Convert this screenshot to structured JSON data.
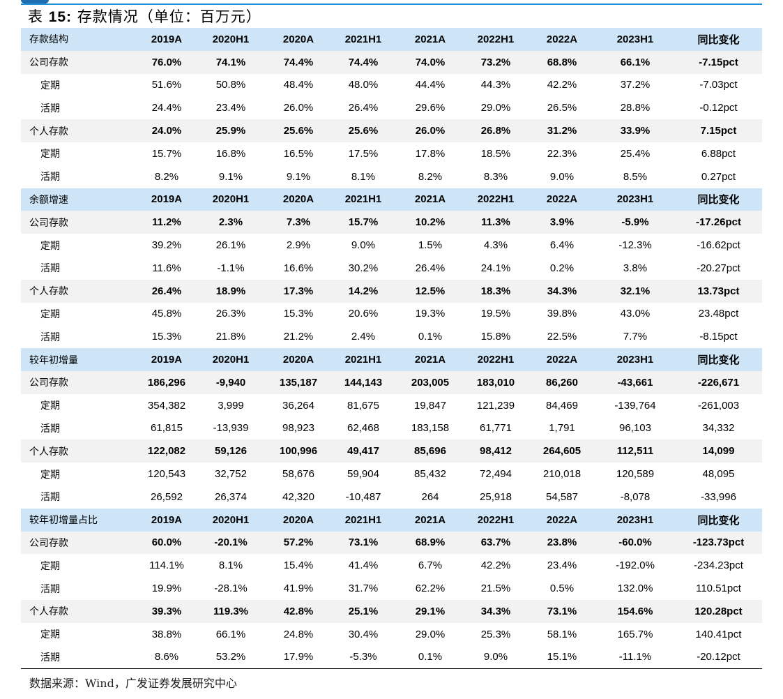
{
  "title": {
    "prefix": "表 ",
    "number": "15:",
    "text": " 存款情况（单位：百万元）"
  },
  "columns": [
    "2019A",
    "2020H1",
    "2020A",
    "2021H1",
    "2021A",
    "2022H1",
    "2022A",
    "2023H1",
    "同比变化"
  ],
  "sections": [
    {
      "header": "存款结构",
      "rows": [
        {
          "label": "公司存款",
          "bold": true,
          "values": [
            "76.0%",
            "74.1%",
            "74.4%",
            "74.4%",
            "74.0%",
            "73.2%",
            "68.8%",
            "66.1%",
            "-7.15pct"
          ]
        },
        {
          "label": "定期",
          "values": [
            "51.6%",
            "50.8%",
            "48.4%",
            "48.0%",
            "44.4%",
            "44.3%",
            "42.2%",
            "37.2%",
            "-7.03pct"
          ]
        },
        {
          "label": "活期",
          "values": [
            "24.4%",
            "23.4%",
            "26.0%",
            "26.4%",
            "29.6%",
            "29.0%",
            "26.5%",
            "28.8%",
            "-0.12pct"
          ]
        },
        {
          "label": "个人存款",
          "bold": true,
          "values": [
            "24.0%",
            "25.9%",
            "25.6%",
            "25.6%",
            "26.0%",
            "26.8%",
            "31.2%",
            "33.9%",
            "7.15pct"
          ]
        },
        {
          "label": "定期",
          "values": [
            "15.7%",
            "16.8%",
            "16.5%",
            "17.5%",
            "17.8%",
            "18.5%",
            "22.3%",
            "25.4%",
            "6.88pct"
          ]
        },
        {
          "label": "活期",
          "values": [
            "8.2%",
            "9.1%",
            "9.1%",
            "8.1%",
            "8.2%",
            "8.3%",
            "9.0%",
            "8.5%",
            "0.27pct"
          ]
        }
      ]
    },
    {
      "header": "余额增速",
      "rows": [
        {
          "label": "公司存款",
          "bold": true,
          "values": [
            "11.2%",
            "2.3%",
            "7.3%",
            "15.7%",
            "10.2%",
            "11.3%",
            "3.9%",
            "-5.9%",
            "-17.26pct"
          ]
        },
        {
          "label": "定期",
          "values": [
            "39.2%",
            "26.1%",
            "2.9%",
            "9.0%",
            "1.5%",
            "4.3%",
            "6.4%",
            "-12.3%",
            "-16.62pct"
          ]
        },
        {
          "label": "活期",
          "values": [
            "11.6%",
            "-1.1%",
            "16.6%",
            "30.2%",
            "26.4%",
            "24.1%",
            "0.2%",
            "3.8%",
            "-20.27pct"
          ]
        },
        {
          "label": "个人存款",
          "bold": true,
          "values": [
            "26.4%",
            "18.9%",
            "17.3%",
            "14.2%",
            "12.5%",
            "18.3%",
            "34.3%",
            "32.1%",
            "13.73pct"
          ]
        },
        {
          "label": "定期",
          "values": [
            "45.8%",
            "26.3%",
            "15.3%",
            "20.6%",
            "19.3%",
            "19.5%",
            "39.8%",
            "43.0%",
            "23.48pct"
          ]
        },
        {
          "label": "活期",
          "values": [
            "15.3%",
            "21.8%",
            "21.2%",
            "2.4%",
            "0.1%",
            "15.8%",
            "22.5%",
            "7.7%",
            "-8.15pct"
          ]
        }
      ]
    },
    {
      "header": "较年初增量",
      "rows": [
        {
          "label": "公司存款",
          "bold": true,
          "values": [
            "186,296",
            "-9,940",
            "135,187",
            "144,143",
            "203,005",
            "183,010",
            "86,260",
            "-43,661",
            "-226,671"
          ]
        },
        {
          "label": "定期",
          "values": [
            "354,382",
            "3,999",
            "36,264",
            "81,675",
            "19,847",
            "121,239",
            "84,469",
            "-139,764",
            "-261,003"
          ]
        },
        {
          "label": "活期",
          "values": [
            "61,815",
            "-13,939",
            "98,923",
            "62,468",
            "183,158",
            "61,771",
            "1,791",
            "96,103",
            "34,332"
          ]
        },
        {
          "label": "个人存款",
          "bold": true,
          "values": [
            "122,082",
            "59,126",
            "100,996",
            "49,417",
            "85,696",
            "98,412",
            "264,605",
            "112,511",
            "14,099"
          ]
        },
        {
          "label": "定期",
          "values": [
            "120,543",
            "32,752",
            "58,676",
            "59,904",
            "85,432",
            "72,494",
            "210,018",
            "120,589",
            "48,095"
          ]
        },
        {
          "label": "活期",
          "values": [
            "26,592",
            "26,374",
            "42,320",
            "-10,487",
            "264",
            "25,918",
            "54,587",
            "-8,078",
            "-33,996"
          ]
        }
      ]
    },
    {
      "header": "较年初增量占比",
      "rows": [
        {
          "label": "公司存款",
          "bold": true,
          "values": [
            "60.0%",
            "-20.1%",
            "57.2%",
            "73.1%",
            "68.9%",
            "63.7%",
            "23.8%",
            "-60.0%",
            "-123.73pct"
          ]
        },
        {
          "label": "定期",
          "values": [
            "114.1%",
            "8.1%",
            "15.4%",
            "41.4%",
            "6.7%",
            "42.2%",
            "23.4%",
            "-192.0%",
            "-234.23pct"
          ]
        },
        {
          "label": "活期",
          "values": [
            "19.9%",
            "-28.1%",
            "41.9%",
            "31.7%",
            "62.2%",
            "21.5%",
            "0.5%",
            "132.0%",
            "110.51pct"
          ]
        },
        {
          "label": "个人存款",
          "bold": true,
          "values": [
            "39.3%",
            "119.3%",
            "42.8%",
            "25.1%",
            "29.1%",
            "34.3%",
            "73.1%",
            "154.6%",
            "120.28pct"
          ]
        },
        {
          "label": "定期",
          "values": [
            "38.8%",
            "66.1%",
            "24.8%",
            "30.4%",
            "29.0%",
            "25.3%",
            "58.1%",
            "165.7%",
            "140.41pct"
          ]
        },
        {
          "label": "活期",
          "values": [
            "8.6%",
            "53.2%",
            "17.9%",
            "-5.3%",
            "0.1%",
            "9.0%",
            "15.1%",
            "-11.1%",
            "-20.12pct"
          ]
        }
      ]
    }
  ],
  "source": "数据来源：Wind，广发证券发展研究中心",
  "colors": {
    "header_bg": "#cde5f7",
    "bold_row_bg": "#f2f2f2",
    "accent_line": "#1f8fd6"
  }
}
